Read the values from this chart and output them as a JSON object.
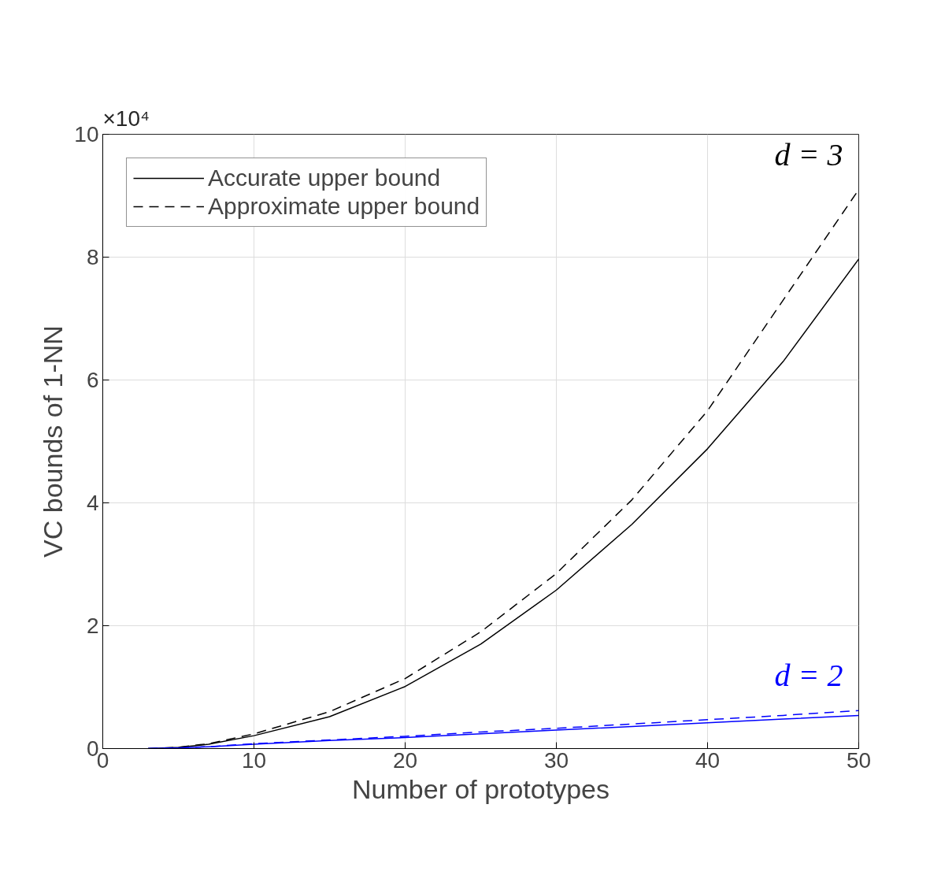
{
  "chart_data": {
    "type": "line",
    "xlabel": "Number of prototypes",
    "ylabel": "VC bounds of 1-NN",
    "x": [
      3,
      5,
      7,
      10,
      15,
      20,
      25,
      30,
      35,
      40,
      45,
      50
    ],
    "series": [
      {
        "name": "Accurate upper bound",
        "color": "#000000",
        "line_style": "solid",
        "values": [
          0,
          0.02,
          0.07,
          0.21,
          0.52,
          1.01,
          1.7,
          2.58,
          3.65,
          4.88,
          6.3,
          7.97
        ]
      },
      {
        "name": "Approximate upper bound",
        "color": "#000000",
        "line_style": "dashed",
        "values": [
          0,
          0.02,
          0.08,
          0.24,
          0.6,
          1.14,
          1.9,
          2.85,
          4.05,
          5.5,
          7.3,
          9.1
        ]
      },
      {
        "color": "#0000ff",
        "line_style": "solid",
        "values": [
          0,
          0.01,
          0.03,
          0.07,
          0.13,
          0.18,
          0.24,
          0.3,
          0.36,
          0.42,
          0.48,
          0.54
        ]
      },
      {
        "color": "#0000ff",
        "line_style": "dashed",
        "values": [
          0,
          0.01,
          0.03,
          0.08,
          0.14,
          0.2,
          0.27,
          0.33,
          0.4,
          0.47,
          0.54,
          0.62
        ]
      }
    ],
    "xlim": [
      0,
      50
    ],
    "xticks": [
      0,
      10,
      20,
      30,
      40,
      50
    ],
    "ylim": [
      0,
      10
    ],
    "yticks": [
      0,
      2,
      4,
      6,
      8,
      10
    ],
    "annotations": [
      "×10⁴",
      "d = 3",
      "d = 2"
    ],
    "grid": true,
    "legend": "top left",
    "marker": "none"
  }
}
